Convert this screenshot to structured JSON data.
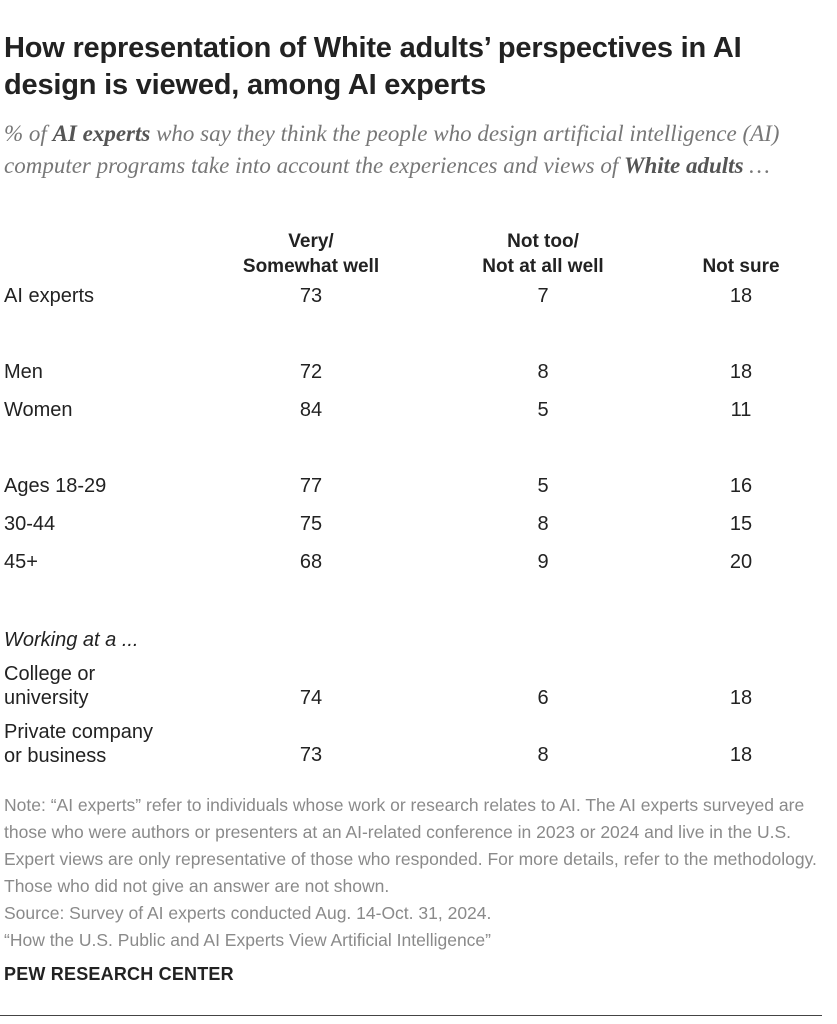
{
  "header": {
    "title": "How representation of White adults’ perspectives in AI design is viewed, among AI experts",
    "subtitle_pre": "% of ",
    "subtitle_bold1": "AI experts",
    "subtitle_mid": " who say they think the people who design artificial intelligence (AI) computer programs take into account the experiences and views of ",
    "subtitle_bold2": "White adults",
    "subtitle_post": " …"
  },
  "chart_data": {
    "type": "table",
    "columns": [
      "Very/\nSomewhat well",
      "Not too/\nNot at all well",
      "Not sure"
    ],
    "rows": [
      {
        "label": "AI experts",
        "values": [
          "73",
          "7",
          "18"
        ]
      },
      {
        "label": "Men",
        "values": [
          "72",
          "8",
          "18"
        ]
      },
      {
        "label": "Women",
        "values": [
          "84",
          "5",
          "11"
        ]
      },
      {
        "label": "Ages 18-29",
        "values": [
          "77",
          "5",
          "16"
        ]
      },
      {
        "label": "30-44",
        "values": [
          "75",
          "8",
          "15"
        ]
      },
      {
        "label": "45+",
        "values": [
          "68",
          "9",
          "20"
        ]
      },
      {
        "label": "Working at a ...",
        "values": [
          "",
          "",
          ""
        ]
      },
      {
        "label": "College or\nuniversity",
        "values": [
          "74",
          "6",
          "18"
        ]
      },
      {
        "label": "Private company\nor business",
        "values": [
          "73",
          "8",
          "18"
        ]
      }
    ]
  },
  "footer": {
    "note": "Note: “AI experts” refer to individuals whose work or research relates to AI. The AI experts surveyed are those who were authors or presenters at an AI-related conference in 2023 or 2024 and live in the U.S. Expert views are only representative of those who responded. For more details, refer to the methodology. Those who did not give an answer are not shown.",
    "source": "Source: Survey of AI experts conducted Aug. 14-Oct. 31, 2024.",
    "report": "“How the U.S. Public and AI Experts View Artificial Intelligence”",
    "logo": "PEW RESEARCH CENTER"
  }
}
